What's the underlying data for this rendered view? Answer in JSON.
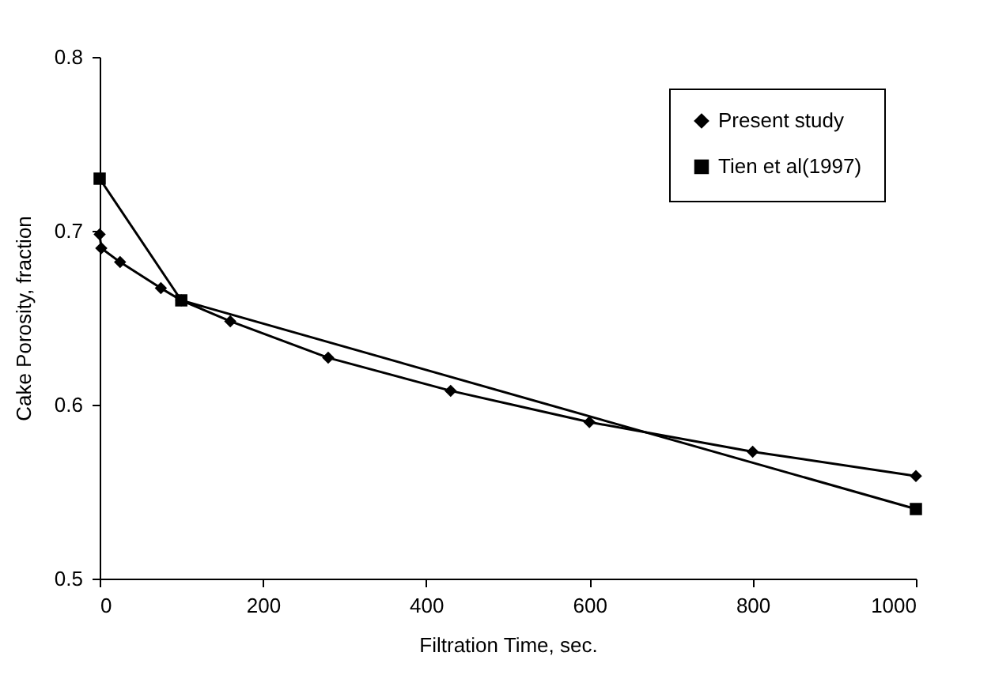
{
  "chart_data": {
    "type": "line",
    "xlabel": "Filtration Time, sec.",
    "ylabel": "Cake Porosity, fraction",
    "xlim": [
      0,
      1000
    ],
    "xticks": [
      0,
      200,
      400,
      600,
      800,
      1000
    ],
    "ylim": [
      0.5,
      0.8
    ],
    "yticks": [
      0.5,
      0.6,
      0.7,
      0.8
    ],
    "grid": false,
    "legend": "top right",
    "line_style": "solid",
    "series": [
      {
        "name": "Present study",
        "color": "#000000",
        "marker": "diamond",
        "x": [
          0,
          2,
          25,
          75,
          100,
          160,
          280,
          430,
          600,
          800,
          1000
        ],
        "values": [
          0.698,
          0.69,
          0.682,
          0.667,
          0.66,
          0.648,
          0.627,
          0.608,
          0.59,
          0.573,
          0.559
        ]
      },
      {
        "name": "Tien et al(1997)",
        "color": "#000000",
        "marker": "square",
        "x": [
          0,
          100,
          1000
        ],
        "values": [
          0.73,
          0.66,
          0.54
        ]
      }
    ]
  }
}
